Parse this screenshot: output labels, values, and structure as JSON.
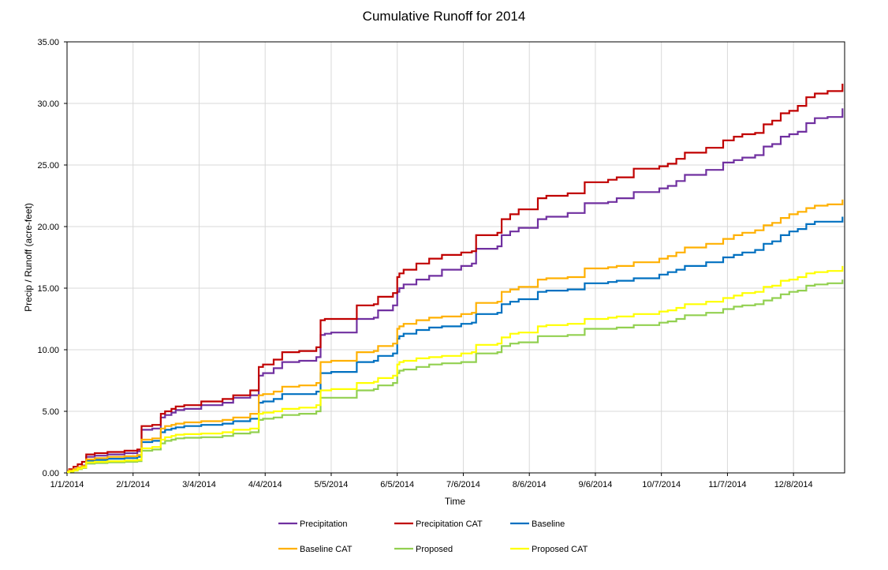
{
  "chart_data": {
    "type": "line",
    "title": "Cumulative Runoff for 2014",
    "xlabel": "Time",
    "ylabel": "Precip / Runoff (acre-feet)",
    "ylim": [
      0,
      35
    ],
    "xlim": [
      "2014-01-01",
      "2014-12-31"
    ],
    "grid": true,
    "legend_position": "bottom",
    "x_ticks": [
      "1/1/2014",
      "2/1/2014",
      "3/4/2014",
      "4/4/2014",
      "5/5/2014",
      "6/5/2014",
      "7/6/2014",
      "8/6/2014",
      "9/6/2014",
      "10/7/2014",
      "11/7/2014",
      "12/8/2014"
    ],
    "y_ticks": [
      "0.00",
      "5.00",
      "10.00",
      "15.00",
      "20.00",
      "25.00",
      "30.00",
      "35.00"
    ],
    "series": [
      {
        "name": "Precipitation",
        "color": "#7030a0",
        "step": true,
        "x": [
          "2014-01-01",
          "2014-01-02",
          "2014-01-04",
          "2014-01-06",
          "2014-01-08",
          "2014-01-10",
          "2014-01-14",
          "2014-01-20",
          "2014-01-28",
          "2014-02-03",
          "2014-02-05",
          "2014-02-10",
          "2014-02-14",
          "2014-02-16",
          "2014-02-19",
          "2014-02-21",
          "2014-02-25",
          "2014-03-05",
          "2014-03-15",
          "2014-03-20",
          "2014-03-28",
          "2014-04-01",
          "2014-04-03",
          "2014-04-08",
          "2014-04-12",
          "2014-04-20",
          "2014-04-28",
          "2014-04-30",
          "2014-05-02",
          "2014-05-05",
          "2014-05-17",
          "2014-05-25",
          "2014-05-27",
          "2014-06-03",
          "2014-06-05",
          "2014-06-06",
          "2014-06-08",
          "2014-06-14",
          "2014-06-20",
          "2014-06-26",
          "2014-07-05",
          "2014-07-10",
          "2014-07-12",
          "2014-07-22",
          "2014-07-24",
          "2014-07-28",
          "2014-08-01",
          "2014-08-10",
          "2014-08-14",
          "2014-08-24",
          "2014-09-01",
          "2014-09-12",
          "2014-09-16",
          "2014-09-24",
          "2014-10-06",
          "2014-10-10",
          "2014-10-14",
          "2014-10-18",
          "2014-10-28",
          "2014-11-05",
          "2014-11-10",
          "2014-11-14",
          "2014-11-20",
          "2014-11-24",
          "2014-11-28",
          "2014-12-02",
          "2014-12-06",
          "2014-12-10",
          "2014-12-14",
          "2014-12-18",
          "2014-12-24",
          "2014-12-31"
        ],
        "y": [
          0.1,
          0.2,
          0.3,
          0.45,
          0.6,
          1.3,
          1.4,
          1.5,
          1.6,
          1.75,
          3.5,
          3.6,
          4.5,
          4.7,
          4.9,
          5.1,
          5.2,
          5.5,
          5.7,
          6.1,
          6.3,
          7.9,
          8.1,
          8.5,
          9.0,
          9.1,
          9.4,
          11.2,
          11.3,
          11.4,
          12.5,
          12.6,
          13.2,
          13.6,
          14.7,
          15.0,
          15.3,
          15.7,
          16.0,
          16.5,
          16.8,
          17.0,
          18.2,
          18.4,
          19.3,
          19.6,
          19.9,
          20.6,
          20.8,
          21.1,
          21.9,
          22.0,
          22.3,
          22.8,
          23.1,
          23.3,
          23.7,
          24.2,
          24.6,
          25.2,
          25.4,
          25.6,
          25.8,
          26.5,
          26.7,
          27.3,
          27.5,
          27.7,
          28.4,
          28.8,
          28.9,
          29.6
        ]
      },
      {
        "name": "Precipitation CAT",
        "color": "#c00000",
        "step": true,
        "x": [
          "2014-01-01",
          "2014-01-02",
          "2014-01-04",
          "2014-01-06",
          "2014-01-08",
          "2014-01-10",
          "2014-01-14",
          "2014-01-20",
          "2014-01-28",
          "2014-02-03",
          "2014-02-05",
          "2014-02-10",
          "2014-02-14",
          "2014-02-16",
          "2014-02-19",
          "2014-02-21",
          "2014-02-25",
          "2014-03-05",
          "2014-03-15",
          "2014-03-20",
          "2014-03-28",
          "2014-04-01",
          "2014-04-03",
          "2014-04-08",
          "2014-04-12",
          "2014-04-20",
          "2014-04-28",
          "2014-04-30",
          "2014-05-02",
          "2014-05-05",
          "2014-05-17",
          "2014-05-25",
          "2014-05-27",
          "2014-06-03",
          "2014-06-05",
          "2014-06-06",
          "2014-06-08",
          "2014-06-14",
          "2014-06-20",
          "2014-06-26",
          "2014-07-05",
          "2014-07-10",
          "2014-07-12",
          "2014-07-22",
          "2014-07-24",
          "2014-07-28",
          "2014-08-01",
          "2014-08-10",
          "2014-08-14",
          "2014-08-24",
          "2014-09-01",
          "2014-09-12",
          "2014-09-16",
          "2014-09-24",
          "2014-10-06",
          "2014-10-10",
          "2014-10-14",
          "2014-10-18",
          "2014-10-28",
          "2014-11-05",
          "2014-11-10",
          "2014-11-14",
          "2014-11-20",
          "2014-11-24",
          "2014-11-28",
          "2014-12-02",
          "2014-12-06",
          "2014-12-10",
          "2014-12-14",
          "2014-12-18",
          "2014-12-24",
          "2014-12-31"
        ],
        "y": [
          0.15,
          0.3,
          0.5,
          0.7,
          0.9,
          1.5,
          1.6,
          1.7,
          1.8,
          1.9,
          3.8,
          3.9,
          4.8,
          5.0,
          5.2,
          5.4,
          5.5,
          5.8,
          6.0,
          6.3,
          6.7,
          8.6,
          8.8,
          9.2,
          9.8,
          9.9,
          10.2,
          12.4,
          12.5,
          12.5,
          13.6,
          13.7,
          14.3,
          14.6,
          15.9,
          16.2,
          16.5,
          17.0,
          17.4,
          17.7,
          17.9,
          18.0,
          19.3,
          19.5,
          20.6,
          21.0,
          21.4,
          22.3,
          22.5,
          22.7,
          23.6,
          23.8,
          24.0,
          24.7,
          24.9,
          25.1,
          25.5,
          26.0,
          26.4,
          27.0,
          27.3,
          27.5,
          27.6,
          28.3,
          28.6,
          29.2,
          29.4,
          29.8,
          30.5,
          30.8,
          31.0,
          31.6
        ]
      },
      {
        "name": "Baseline",
        "color": "#0070c0",
        "step": true,
        "x": [
          "2014-01-01",
          "2014-01-02",
          "2014-01-04",
          "2014-01-06",
          "2014-01-08",
          "2014-01-10",
          "2014-01-14",
          "2014-01-20",
          "2014-01-28",
          "2014-02-03",
          "2014-02-05",
          "2014-02-10",
          "2014-02-14",
          "2014-02-16",
          "2014-02-19",
          "2014-02-21",
          "2014-02-25",
          "2014-03-05",
          "2014-03-15",
          "2014-03-20",
          "2014-03-28",
          "2014-04-01",
          "2014-04-03",
          "2014-04-08",
          "2014-04-12",
          "2014-04-20",
          "2014-04-28",
          "2014-04-30",
          "2014-05-02",
          "2014-05-05",
          "2014-05-17",
          "2014-05-25",
          "2014-05-27",
          "2014-06-03",
          "2014-06-05",
          "2014-06-06",
          "2014-06-08",
          "2014-06-14",
          "2014-06-20",
          "2014-06-26",
          "2014-07-05",
          "2014-07-10",
          "2014-07-12",
          "2014-07-22",
          "2014-07-24",
          "2014-07-28",
          "2014-08-01",
          "2014-08-10",
          "2014-08-14",
          "2014-08-24",
          "2014-09-01",
          "2014-09-12",
          "2014-09-16",
          "2014-09-24",
          "2014-10-06",
          "2014-10-10",
          "2014-10-14",
          "2014-10-18",
          "2014-10-28",
          "2014-11-05",
          "2014-11-10",
          "2014-11-14",
          "2014-11-20",
          "2014-11-24",
          "2014-11-28",
          "2014-12-02",
          "2014-12-06",
          "2014-12-10",
          "2014-12-14",
          "2014-12-18",
          "2014-12-24",
          "2014-12-31"
        ],
        "y": [
          0.08,
          0.15,
          0.25,
          0.4,
          0.5,
          1.0,
          1.05,
          1.15,
          1.2,
          1.3,
          2.5,
          2.6,
          3.3,
          3.5,
          3.6,
          3.7,
          3.8,
          3.9,
          4.0,
          4.2,
          4.4,
          5.7,
          5.8,
          6.0,
          6.4,
          6.4,
          6.6,
          8.1,
          8.1,
          8.2,
          9.0,
          9.1,
          9.5,
          9.7,
          10.9,
          11.1,
          11.3,
          11.6,
          11.8,
          11.9,
          12.1,
          12.2,
          12.9,
          13.0,
          13.7,
          13.9,
          14.1,
          14.7,
          14.8,
          14.9,
          15.4,
          15.5,
          15.6,
          15.8,
          16.1,
          16.3,
          16.5,
          16.8,
          17.1,
          17.5,
          17.7,
          17.9,
          18.1,
          18.6,
          18.8,
          19.3,
          19.6,
          19.8,
          20.2,
          20.4,
          20.4,
          20.8
        ]
      },
      {
        "name": "Baseline CAT",
        "color": "#ffb000",
        "step": true,
        "x": [
          "2014-01-01",
          "2014-01-02",
          "2014-01-04",
          "2014-01-06",
          "2014-01-08",
          "2014-01-10",
          "2014-01-14",
          "2014-01-20",
          "2014-01-28",
          "2014-02-03",
          "2014-02-05",
          "2014-02-10",
          "2014-02-14",
          "2014-02-16",
          "2014-02-19",
          "2014-02-21",
          "2014-02-25",
          "2014-03-05",
          "2014-03-15",
          "2014-03-20",
          "2014-03-28",
          "2014-04-01",
          "2014-04-03",
          "2014-04-08",
          "2014-04-12",
          "2014-04-20",
          "2014-04-28",
          "2014-04-30",
          "2014-05-02",
          "2014-05-05",
          "2014-05-17",
          "2014-05-25",
          "2014-05-27",
          "2014-06-03",
          "2014-06-05",
          "2014-06-06",
          "2014-06-08",
          "2014-06-14",
          "2014-06-20",
          "2014-06-26",
          "2014-07-05",
          "2014-07-10",
          "2014-07-12",
          "2014-07-22",
          "2014-07-24",
          "2014-07-28",
          "2014-08-01",
          "2014-08-10",
          "2014-08-14",
          "2014-08-24",
          "2014-09-01",
          "2014-09-12",
          "2014-09-16",
          "2014-09-24",
          "2014-10-06",
          "2014-10-10",
          "2014-10-14",
          "2014-10-18",
          "2014-10-28",
          "2014-11-05",
          "2014-11-10",
          "2014-11-14",
          "2014-11-20",
          "2014-11-24",
          "2014-11-28",
          "2014-12-02",
          "2014-12-06",
          "2014-12-10",
          "2014-12-14",
          "2014-12-18",
          "2014-12-24",
          "2014-12-31"
        ],
        "y": [
          0.1,
          0.2,
          0.3,
          0.45,
          0.55,
          1.1,
          1.2,
          1.3,
          1.35,
          1.45,
          2.7,
          2.8,
          3.6,
          3.8,
          3.9,
          4.0,
          4.1,
          4.2,
          4.3,
          4.5,
          4.8,
          6.3,
          6.4,
          6.6,
          7.0,
          7.1,
          7.3,
          9.0,
          9.0,
          9.1,
          9.8,
          9.9,
          10.3,
          10.5,
          11.7,
          11.9,
          12.1,
          12.4,
          12.6,
          12.7,
          12.9,
          13.0,
          13.8,
          13.9,
          14.7,
          14.9,
          15.1,
          15.7,
          15.8,
          15.9,
          16.6,
          16.7,
          16.8,
          17.1,
          17.4,
          17.6,
          17.9,
          18.3,
          18.6,
          19.0,
          19.3,
          19.5,
          19.7,
          20.1,
          20.3,
          20.7,
          21.0,
          21.2,
          21.5,
          21.7,
          21.8,
          22.2
        ]
      },
      {
        "name": "Proposed",
        "color": "#92d050",
        "step": true,
        "x": [
          "2014-01-01",
          "2014-01-02",
          "2014-01-04",
          "2014-01-06",
          "2014-01-08",
          "2014-01-10",
          "2014-01-14",
          "2014-01-20",
          "2014-01-28",
          "2014-02-03",
          "2014-02-05",
          "2014-02-10",
          "2014-02-14",
          "2014-02-16",
          "2014-02-19",
          "2014-02-21",
          "2014-02-25",
          "2014-03-05",
          "2014-03-15",
          "2014-03-20",
          "2014-03-28",
          "2014-04-01",
          "2014-04-03",
          "2014-04-08",
          "2014-04-12",
          "2014-04-20",
          "2014-04-28",
          "2014-04-30",
          "2014-05-02",
          "2014-05-05",
          "2014-05-17",
          "2014-05-25",
          "2014-05-27",
          "2014-06-03",
          "2014-06-05",
          "2014-06-06",
          "2014-06-08",
          "2014-06-14",
          "2014-06-20",
          "2014-06-26",
          "2014-07-05",
          "2014-07-10",
          "2014-07-12",
          "2014-07-22",
          "2014-07-24",
          "2014-07-28",
          "2014-08-01",
          "2014-08-10",
          "2014-08-14",
          "2014-08-24",
          "2014-09-01",
          "2014-09-12",
          "2014-09-16",
          "2014-09-24",
          "2014-10-06",
          "2014-10-10",
          "2014-10-14",
          "2014-10-18",
          "2014-10-28",
          "2014-11-05",
          "2014-11-10",
          "2014-11-14",
          "2014-11-20",
          "2014-11-24",
          "2014-11-28",
          "2014-12-02",
          "2014-12-06",
          "2014-12-10",
          "2014-12-14",
          "2014-12-18",
          "2014-12-24",
          "2014-12-31"
        ],
        "y": [
          0.05,
          0.1,
          0.18,
          0.3,
          0.4,
          0.75,
          0.8,
          0.85,
          0.9,
          0.95,
          1.8,
          1.9,
          2.4,
          2.6,
          2.7,
          2.8,
          2.85,
          2.9,
          3.0,
          3.2,
          3.3,
          4.3,
          4.4,
          4.5,
          4.7,
          4.8,
          5.0,
          6.1,
          6.1,
          6.1,
          6.7,
          6.8,
          7.1,
          7.3,
          8.1,
          8.3,
          8.4,
          8.6,
          8.8,
          8.9,
          9.0,
          9.0,
          9.7,
          9.8,
          10.3,
          10.5,
          10.6,
          11.1,
          11.1,
          11.2,
          11.7,
          11.7,
          11.8,
          12.0,
          12.2,
          12.3,
          12.5,
          12.8,
          13.0,
          13.3,
          13.5,
          13.6,
          13.7,
          14.0,
          14.2,
          14.5,
          14.7,
          14.8,
          15.2,
          15.3,
          15.4,
          15.7
        ]
      },
      {
        "name": "Proposed CAT",
        "color": "#ffff00",
        "step": true,
        "x": [
          "2014-01-01",
          "2014-01-02",
          "2014-01-04",
          "2014-01-06",
          "2014-01-08",
          "2014-01-10",
          "2014-01-14",
          "2014-01-20",
          "2014-01-28",
          "2014-02-03",
          "2014-02-05",
          "2014-02-10",
          "2014-02-14",
          "2014-02-16",
          "2014-02-19",
          "2014-02-21",
          "2014-02-25",
          "2014-03-05",
          "2014-03-15",
          "2014-03-20",
          "2014-03-28",
          "2014-04-01",
          "2014-04-03",
          "2014-04-08",
          "2014-04-12",
          "2014-04-20",
          "2014-04-28",
          "2014-04-30",
          "2014-05-02",
          "2014-05-05",
          "2014-05-17",
          "2014-05-25",
          "2014-05-27",
          "2014-06-03",
          "2014-06-05",
          "2014-06-06",
          "2014-06-08",
          "2014-06-14",
          "2014-06-20",
          "2014-06-26",
          "2014-07-05",
          "2014-07-10",
          "2014-07-12",
          "2014-07-22",
          "2014-07-24",
          "2014-07-28",
          "2014-08-01",
          "2014-08-10",
          "2014-08-14",
          "2014-08-24",
          "2014-09-01",
          "2014-09-12",
          "2014-09-16",
          "2014-09-24",
          "2014-10-06",
          "2014-10-10",
          "2014-10-14",
          "2014-10-18",
          "2014-10-28",
          "2014-11-05",
          "2014-11-10",
          "2014-11-14",
          "2014-11-20",
          "2014-11-24",
          "2014-11-28",
          "2014-12-02",
          "2014-12-06",
          "2014-12-10",
          "2014-12-14",
          "2014-12-18",
          "2014-12-24",
          "2014-12-31"
        ],
        "y": [
          0.06,
          0.12,
          0.2,
          0.35,
          0.45,
          0.85,
          0.9,
          0.95,
          1.0,
          1.05,
          2.0,
          2.1,
          2.7,
          2.9,
          3.0,
          3.1,
          3.15,
          3.2,
          3.3,
          3.5,
          3.6,
          4.8,
          4.9,
          5.0,
          5.2,
          5.3,
          5.5,
          6.7,
          6.7,
          6.8,
          7.3,
          7.4,
          7.7,
          7.9,
          8.8,
          9.0,
          9.1,
          9.3,
          9.4,
          9.5,
          9.7,
          9.8,
          10.4,
          10.5,
          11.0,
          11.3,
          11.4,
          11.9,
          12.0,
          12.1,
          12.5,
          12.6,
          12.7,
          12.9,
          13.1,
          13.2,
          13.4,
          13.7,
          13.9,
          14.2,
          14.4,
          14.6,
          14.7,
          15.1,
          15.2,
          15.6,
          15.7,
          15.9,
          16.2,
          16.3,
          16.4,
          16.8
        ]
      }
    ]
  }
}
